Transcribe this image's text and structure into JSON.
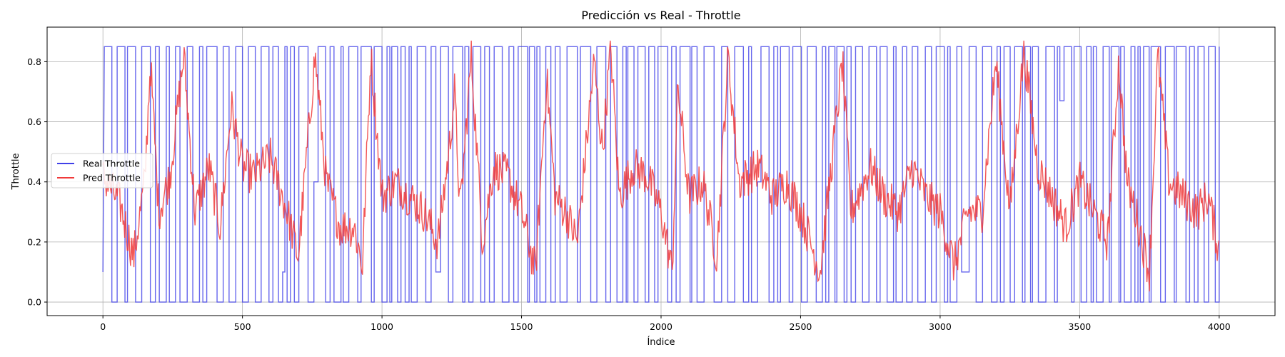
{
  "chart_data": {
    "type": "line",
    "title": "Predicción vs Real - Throttle",
    "xlabel": "Índice",
    "ylabel": "Throttle",
    "xlim": [
      -200,
      4200
    ],
    "ylim": [
      -0.045,
      0.915
    ],
    "xticks": [
      0,
      500,
      1000,
      1500,
      2000,
      2500,
      3000,
      3500,
      4000
    ],
    "yticks": [
      0.0,
      0.2,
      0.4,
      0.6,
      0.8
    ],
    "ytick_labels": [
      "0.0",
      "0.2",
      "0.4",
      "0.6",
      "0.8"
    ],
    "grid": true,
    "legend_position": "center-left",
    "n_points": 4001,
    "series": [
      {
        "name": "Real Throttle",
        "color": "#4040e8",
        "style": "binary-switching",
        "levels": [
          0.0,
          0.85
        ],
        "partial_levels": [
          0.1,
          0.4,
          0.67
        ],
        "start": [
          [
            0,
            0.1
          ],
          [
            5,
            0.85
          ]
        ],
        "end_value": 0.85
      },
      {
        "name": "Pred Throttle",
        "color": "#f03a3a",
        "style": "noisy",
        "anchors": [
          [
            0,
            0.42
          ],
          [
            60,
            0.33
          ],
          [
            110,
            0.15
          ],
          [
            150,
            0.4
          ],
          [
            170,
            0.8
          ],
          [
            200,
            0.3
          ],
          [
            240,
            0.42
          ],
          [
            290,
            0.82
          ],
          [
            330,
            0.3
          ],
          [
            380,
            0.45
          ],
          [
            420,
            0.25
          ],
          [
            460,
            0.65
          ],
          [
            500,
            0.45
          ],
          [
            540,
            0.42
          ],
          [
            600,
            0.48
          ],
          [
            660,
            0.3
          ],
          [
            700,
            0.15
          ],
          [
            740,
            0.6
          ],
          [
            760,
            0.82
          ],
          [
            800,
            0.4
          ],
          [
            850,
            0.25
          ],
          [
            900,
            0.25
          ],
          [
            930,
            0.12
          ],
          [
            960,
            0.82
          ],
          [
            1000,
            0.35
          ],
          [
            1050,
            0.4
          ],
          [
            1100,
            0.35
          ],
          [
            1150,
            0.3
          ],
          [
            1200,
            0.2
          ],
          [
            1240,
            0.5
          ],
          [
            1260,
            0.7
          ],
          [
            1280,
            0.3
          ],
          [
            1320,
            0.82
          ],
          [
            1360,
            0.2
          ],
          [
            1400,
            0.45
          ],
          [
            1450,
            0.42
          ],
          [
            1500,
            0.3
          ],
          [
            1550,
            0.1
          ],
          [
            1590,
            0.75
          ],
          [
            1620,
            0.35
          ],
          [
            1660,
            0.3
          ],
          [
            1700,
            0.2
          ],
          [
            1760,
            0.8
          ],
          [
            1790,
            0.5
          ],
          [
            1820,
            0.85
          ],
          [
            1850,
            0.35
          ],
          [
            1900,
            0.45
          ],
          [
            1950,
            0.42
          ],
          [
            2000,
            0.3
          ],
          [
            2040,
            0.1
          ],
          [
            2060,
            0.72
          ],
          [
            2100,
            0.35
          ],
          [
            2150,
            0.4
          ],
          [
            2200,
            0.15
          ],
          [
            2240,
            0.82
          ],
          [
            2280,
            0.4
          ],
          [
            2350,
            0.45
          ],
          [
            2400,
            0.35
          ],
          [
            2450,
            0.4
          ],
          [
            2500,
            0.3
          ],
          [
            2570,
            0.1
          ],
          [
            2650,
            0.8
          ],
          [
            2680,
            0.3
          ],
          [
            2750,
            0.45
          ],
          [
            2800,
            0.35
          ],
          [
            2850,
            0.3
          ],
          [
            2900,
            0.45
          ],
          [
            2950,
            0.35
          ],
          [
            3000,
            0.3
          ],
          [
            3050,
            0.12
          ],
          [
            3100,
            0.3
          ],
          [
            3150,
            0.3
          ],
          [
            3200,
            0.8
          ],
          [
            3250,
            0.3
          ],
          [
            3300,
            0.84
          ],
          [
            3350,
            0.45
          ],
          [
            3400,
            0.35
          ],
          [
            3450,
            0.25
          ],
          [
            3500,
            0.4
          ],
          [
            3550,
            0.3
          ],
          [
            3600,
            0.2
          ],
          [
            3640,
            0.8
          ],
          [
            3670,
            0.4
          ],
          [
            3700,
            0.3
          ],
          [
            3750,
            0.1
          ],
          [
            3780,
            0.82
          ],
          [
            3820,
            0.4
          ],
          [
            3870,
            0.35
          ],
          [
            3920,
            0.3
          ],
          [
            3960,
            0.35
          ],
          [
            4000,
            0.17
          ]
        ]
      }
    ]
  }
}
